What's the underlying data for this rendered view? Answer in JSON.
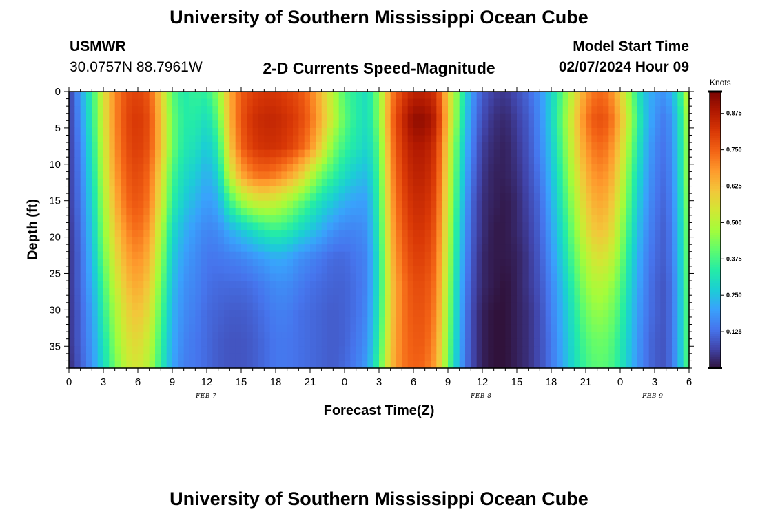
{
  "page": {
    "title_top": "University of Southern Mississippi Ocean Cube",
    "title_bottom": "University of Southern Mississippi Ocean Cube",
    "station": "USMWR",
    "coords": "30.0757N  88.7961W",
    "model_start_label": "Model Start Time",
    "model_start_value": "02/07/2024 Hour 09"
  },
  "colors": {
    "scale": [
      "#30123b",
      "#4145ab",
      "#4675ed",
      "#39a2fc",
      "#1bcfd4",
      "#24eca6",
      "#61fc6c",
      "#a4fc3b",
      "#d1e834",
      "#f3c63a",
      "#fe9b2d",
      "#f36315",
      "#d93806",
      "#b11901",
      "#7a0402"
    ]
  },
  "chart_data": {
    "type": "heatmap",
    "title": "2-D Currents Speed-Magnitude",
    "xlabel": "Forecast Time(Z)",
    "ylabel": "Depth (ft)",
    "x_tick_labels": [
      "0",
      "3",
      "6",
      "9",
      "12",
      "15",
      "18",
      "21",
      "0",
      "3",
      "6",
      "9",
      "12",
      "15",
      "18",
      "21",
      "0",
      "3",
      "6"
    ],
    "x_range_hours": [
      0,
      54
    ],
    "date_labels": [
      {
        "text": "FEB 7",
        "hour": 12
      },
      {
        "text": "FEB 8",
        "hour": 36
      },
      {
        "text": "FEB 9",
        "hour": 51
      }
    ],
    "y_tick_labels": [
      "0",
      "5",
      "10",
      "15",
      "20",
      "25",
      "30",
      "35"
    ],
    "y_tick_values": [
      0,
      5,
      10,
      15,
      20,
      25,
      30,
      35
    ],
    "y_range": [
      0,
      38
    ],
    "colorbar": {
      "label": "Knots",
      "tick_labels": [
        "0.125",
        "0.250",
        "0.375",
        "0.500",
        "0.625",
        "0.750",
        "0.875"
      ],
      "tick_values": [
        0.125,
        0.25,
        0.375,
        0.5,
        0.625,
        0.75,
        0.875
      ],
      "range": [
        0,
        0.95
      ]
    },
    "grid": {
      "depths_ft": [
        0,
        3.8,
        7.6,
        11.4,
        15.2,
        19,
        22.8,
        26.6,
        30.4,
        34.2,
        38
      ],
      "hours": [
        0,
        1,
        2,
        3,
        4,
        5,
        6,
        7,
        8,
        9,
        10,
        11,
        12,
        13,
        14,
        15,
        16,
        17,
        18,
        19,
        20,
        21,
        22,
        23,
        24,
        25,
        26,
        27,
        28,
        29,
        30,
        31,
        32,
        33,
        34,
        35,
        36,
        37,
        38,
        39,
        40,
        41,
        42,
        43,
        44,
        45,
        46,
        47,
        48,
        49,
        50,
        51,
        52,
        53,
        54
      ],
      "speed_knots": [
        [
          0.05,
          0.2,
          0.35,
          0.55,
          0.7,
          0.78,
          0.8,
          0.76,
          0.6,
          0.4,
          0.33,
          0.36,
          0.35,
          0.45,
          0.65,
          0.76,
          0.8,
          0.82,
          0.82,
          0.8,
          0.78,
          0.72,
          0.62,
          0.5,
          0.38,
          0.34,
          0.3,
          0.45,
          0.7,
          0.8,
          0.86,
          0.86,
          0.82,
          0.6,
          0.4,
          0.2,
          0.1,
          0.06,
          0.05,
          0.08,
          0.12,
          0.18,
          0.28,
          0.4,
          0.55,
          0.68,
          0.74,
          0.72,
          0.6,
          0.42,
          0.26,
          0.2,
          0.18,
          0.3,
          0.55
        ],
        [
          0.05,
          0.18,
          0.34,
          0.54,
          0.7,
          0.79,
          0.82,
          0.78,
          0.62,
          0.42,
          0.34,
          0.34,
          0.3,
          0.4,
          0.64,
          0.77,
          0.83,
          0.85,
          0.85,
          0.83,
          0.8,
          0.74,
          0.64,
          0.52,
          0.4,
          0.34,
          0.3,
          0.44,
          0.72,
          0.84,
          0.92,
          0.92,
          0.86,
          0.62,
          0.38,
          0.18,
          0.08,
          0.04,
          0.03,
          0.06,
          0.1,
          0.17,
          0.28,
          0.42,
          0.58,
          0.72,
          0.78,
          0.76,
          0.64,
          0.46,
          0.28,
          0.18,
          0.14,
          0.26,
          0.52
        ],
        [
          0.05,
          0.16,
          0.32,
          0.52,
          0.69,
          0.78,
          0.81,
          0.77,
          0.62,
          0.42,
          0.33,
          0.31,
          0.26,
          0.34,
          0.6,
          0.75,
          0.81,
          0.83,
          0.83,
          0.81,
          0.77,
          0.7,
          0.58,
          0.44,
          0.36,
          0.32,
          0.28,
          0.4,
          0.7,
          0.82,
          0.88,
          0.88,
          0.82,
          0.58,
          0.34,
          0.16,
          0.06,
          0.03,
          0.02,
          0.05,
          0.09,
          0.16,
          0.26,
          0.4,
          0.56,
          0.68,
          0.74,
          0.72,
          0.6,
          0.42,
          0.26,
          0.16,
          0.13,
          0.25,
          0.5
        ],
        [
          0.05,
          0.15,
          0.3,
          0.5,
          0.67,
          0.76,
          0.79,
          0.74,
          0.58,
          0.38,
          0.3,
          0.27,
          0.22,
          0.28,
          0.52,
          0.66,
          0.72,
          0.74,
          0.72,
          0.68,
          0.62,
          0.52,
          0.42,
          0.36,
          0.3,
          0.26,
          0.24,
          0.38,
          0.68,
          0.8,
          0.86,
          0.86,
          0.8,
          0.56,
          0.32,
          0.14,
          0.05,
          0.02,
          0.02,
          0.04,
          0.08,
          0.14,
          0.24,
          0.37,
          0.52,
          0.64,
          0.7,
          0.68,
          0.56,
          0.38,
          0.24,
          0.15,
          0.12,
          0.24,
          0.5
        ],
        [
          0.05,
          0.14,
          0.28,
          0.47,
          0.64,
          0.74,
          0.77,
          0.72,
          0.55,
          0.35,
          0.27,
          0.23,
          0.19,
          0.22,
          0.36,
          0.46,
          0.52,
          0.54,
          0.52,
          0.48,
          0.42,
          0.36,
          0.3,
          0.26,
          0.22,
          0.2,
          0.2,
          0.36,
          0.66,
          0.78,
          0.84,
          0.84,
          0.78,
          0.54,
          0.3,
          0.12,
          0.04,
          0.02,
          0.01,
          0.03,
          0.07,
          0.12,
          0.22,
          0.34,
          0.48,
          0.6,
          0.66,
          0.64,
          0.52,
          0.35,
          0.22,
          0.14,
          0.11,
          0.23,
          0.48
        ],
        [
          0.04,
          0.13,
          0.26,
          0.44,
          0.6,
          0.7,
          0.74,
          0.68,
          0.5,
          0.3,
          0.23,
          0.19,
          0.16,
          0.17,
          0.22,
          0.26,
          0.3,
          0.34,
          0.36,
          0.34,
          0.3,
          0.26,
          0.22,
          0.18,
          0.16,
          0.16,
          0.18,
          0.34,
          0.64,
          0.76,
          0.82,
          0.82,
          0.76,
          0.52,
          0.28,
          0.11,
          0.04,
          0.01,
          0.01,
          0.03,
          0.06,
          0.11,
          0.2,
          0.31,
          0.44,
          0.56,
          0.62,
          0.6,
          0.48,
          0.32,
          0.2,
          0.13,
          0.1,
          0.22,
          0.46
        ],
        [
          0.04,
          0.12,
          0.24,
          0.41,
          0.56,
          0.66,
          0.7,
          0.64,
          0.46,
          0.27,
          0.2,
          0.17,
          0.14,
          0.14,
          0.15,
          0.16,
          0.18,
          0.2,
          0.22,
          0.21,
          0.18,
          0.16,
          0.14,
          0.12,
          0.12,
          0.14,
          0.16,
          0.32,
          0.62,
          0.74,
          0.8,
          0.8,
          0.74,
          0.5,
          0.26,
          0.1,
          0.03,
          0.01,
          0.01,
          0.02,
          0.05,
          0.1,
          0.18,
          0.28,
          0.4,
          0.5,
          0.56,
          0.54,
          0.44,
          0.29,
          0.18,
          0.12,
          0.1,
          0.21,
          0.45
        ],
        [
          0.04,
          0.12,
          0.22,
          0.37,
          0.52,
          0.62,
          0.66,
          0.6,
          0.42,
          0.25,
          0.18,
          0.16,
          0.13,
          0.12,
          0.12,
          0.12,
          0.13,
          0.15,
          0.17,
          0.17,
          0.15,
          0.13,
          0.12,
          0.11,
          0.11,
          0.13,
          0.16,
          0.32,
          0.6,
          0.72,
          0.78,
          0.78,
          0.72,
          0.48,
          0.24,
          0.09,
          0.03,
          0.01,
          0.0,
          0.02,
          0.05,
          0.09,
          0.16,
          0.25,
          0.36,
          0.46,
          0.5,
          0.48,
          0.4,
          0.27,
          0.17,
          0.11,
          0.09,
          0.2,
          0.44
        ],
        [
          0.04,
          0.11,
          0.2,
          0.34,
          0.48,
          0.58,
          0.62,
          0.56,
          0.39,
          0.23,
          0.17,
          0.15,
          0.12,
          0.11,
          0.1,
          0.1,
          0.11,
          0.13,
          0.15,
          0.15,
          0.13,
          0.12,
          0.11,
          0.1,
          0.11,
          0.13,
          0.17,
          0.33,
          0.6,
          0.72,
          0.77,
          0.77,
          0.7,
          0.46,
          0.23,
          0.08,
          0.02,
          0.0,
          0.0,
          0.02,
          0.04,
          0.08,
          0.15,
          0.23,
          0.33,
          0.42,
          0.46,
          0.44,
          0.37,
          0.25,
          0.16,
          0.11,
          0.09,
          0.2,
          0.43
        ],
        [
          0.04,
          0.11,
          0.19,
          0.31,
          0.45,
          0.55,
          0.58,
          0.52,
          0.36,
          0.22,
          0.16,
          0.14,
          0.12,
          0.1,
          0.09,
          0.09,
          0.1,
          0.12,
          0.14,
          0.14,
          0.13,
          0.12,
          0.11,
          0.1,
          0.11,
          0.14,
          0.18,
          0.35,
          0.61,
          0.72,
          0.76,
          0.76,
          0.68,
          0.44,
          0.22,
          0.08,
          0.02,
          0.0,
          0.0,
          0.02,
          0.04,
          0.08,
          0.14,
          0.22,
          0.31,
          0.39,
          0.42,
          0.41,
          0.34,
          0.24,
          0.15,
          0.1,
          0.09,
          0.2,
          0.43
        ],
        [
          0.03,
          0.1,
          0.18,
          0.29,
          0.42,
          0.52,
          0.55,
          0.49,
          0.34,
          0.21,
          0.15,
          0.14,
          0.12,
          0.1,
          0.09,
          0.09,
          0.1,
          0.12,
          0.14,
          0.14,
          0.13,
          0.12,
          0.11,
          0.1,
          0.12,
          0.15,
          0.2,
          0.38,
          0.62,
          0.72,
          0.75,
          0.74,
          0.66,
          0.42,
          0.21,
          0.08,
          0.02,
          0.0,
          0.0,
          0.02,
          0.04,
          0.08,
          0.14,
          0.21,
          0.3,
          0.37,
          0.4,
          0.39,
          0.33,
          0.23,
          0.15,
          0.1,
          0.09,
          0.2,
          0.42
        ]
      ]
    }
  }
}
